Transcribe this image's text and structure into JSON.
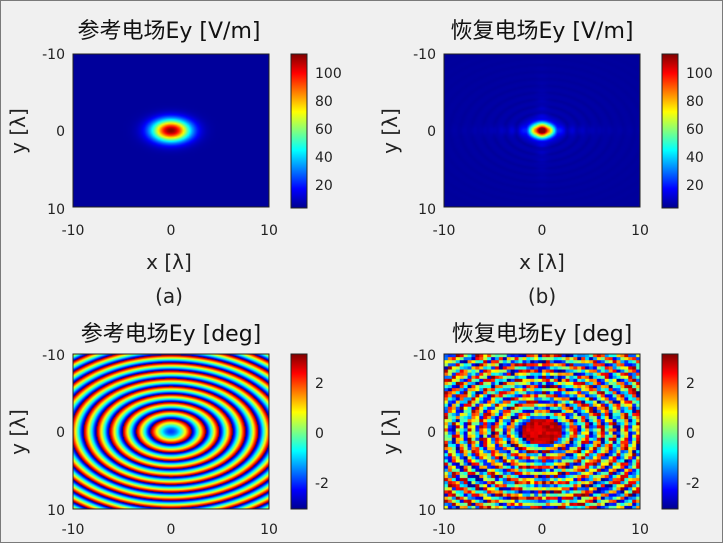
{
  "chart_data": [
    {
      "id": "panel-a",
      "type": "heatmap",
      "title": "参考电场Ey [V/m]",
      "xlabel": "x [λ]",
      "ylabel": "y [λ]",
      "caption": "(a)",
      "xlim": [
        -10,
        10
      ],
      "ylim": [
        -10,
        10
      ],
      "xticks": [
        "-10",
        "0",
        "10"
      ],
      "yticks": [
        "-10",
        "0",
        "10"
      ],
      "colorbar": {
        "range": [
          0,
          112
        ],
        "ticks": [
          "20",
          "40",
          "60",
          "80",
          "100"
        ]
      },
      "colormap": "jet",
      "description_values": {
        "peak": 112,
        "peak_at": [
          0,
          0
        ],
        "background": 3
      }
    },
    {
      "id": "panel-b",
      "type": "heatmap",
      "title": "恢复电场Ey [V/m]",
      "xlabel": "x [λ]",
      "ylabel": "y [λ]",
      "caption": "(b)",
      "xlim": [
        -10,
        10
      ],
      "ylim": [
        -10,
        10
      ],
      "xticks": [
        "-10",
        "0",
        "10"
      ],
      "yticks": [
        "-10",
        "0",
        "10"
      ],
      "colorbar": {
        "range": [
          0,
          112
        ],
        "ticks": [
          "20",
          "40",
          "60",
          "80",
          "100"
        ]
      },
      "colormap": "jet",
      "description_values": {
        "peak": 112,
        "peak_at": [
          0,
          0
        ],
        "background": 3
      }
    },
    {
      "id": "panel-c",
      "type": "heatmap",
      "title": "参考电场Ey [deg]",
      "xlabel": "",
      "ylabel": "y [λ]",
      "caption": "",
      "xlim": [
        -10,
        10
      ],
      "ylim": [
        -10,
        10
      ],
      "xticks": [
        "-10",
        "0",
        "10"
      ],
      "yticks": [
        "-10",
        "0",
        "10"
      ],
      "colorbar": {
        "range": [
          -3.14,
          3.14
        ],
        "ticks": [
          "-2",
          "0",
          "2"
        ]
      },
      "colormap": "jet",
      "description_values": {
        "pattern": "concentric phase rings",
        "ring_period_lambda": 1.0
      }
    },
    {
      "id": "panel-d",
      "type": "heatmap",
      "title": "恢复电场Ey [deg]",
      "xlabel": "",
      "ylabel": "y [λ]",
      "caption": "",
      "xlim": [
        -10,
        10
      ],
      "ylim": [
        -10,
        10
      ],
      "xticks": [
        "-10",
        "0",
        "10"
      ],
      "yticks": [
        "-10",
        "0",
        "10"
      ],
      "colorbar": {
        "range": [
          -3.14,
          3.14
        ],
        "ticks": [
          "-2",
          "0",
          "2"
        ]
      },
      "colormap": "jet",
      "description_values": {
        "pattern": "noisy concentric phase rings",
        "ring_period_lambda": 1.0
      }
    }
  ]
}
